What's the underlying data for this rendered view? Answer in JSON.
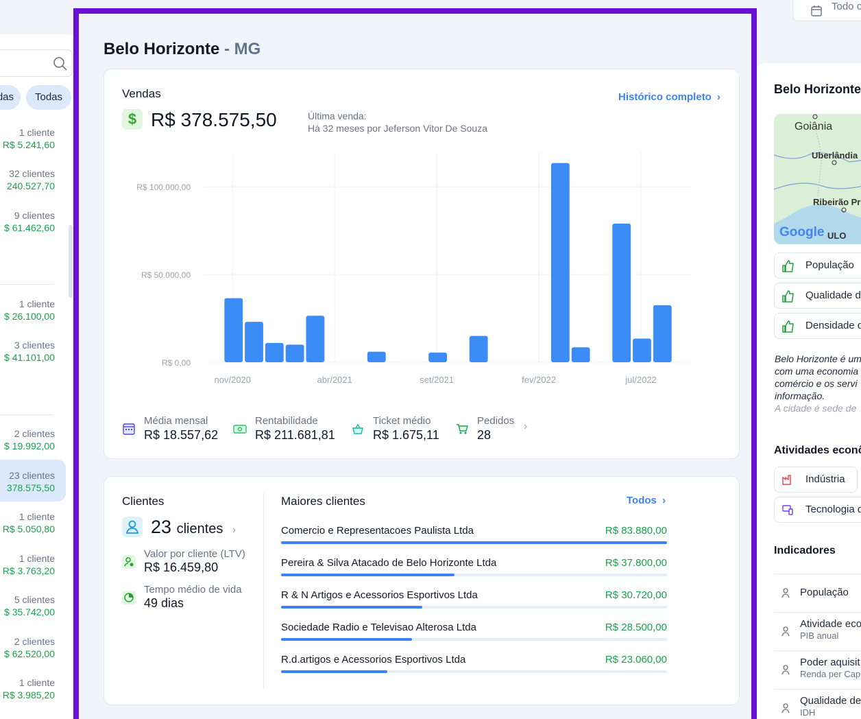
{
  "left_list": {
    "pills": [
      "das",
      "Todas"
    ],
    "items": [
      {
        "count": "1 cliente",
        "value": "R$ 5.241,60"
      },
      {
        "count": "32 clientes",
        "value": "240.527,70"
      },
      {
        "count": "9 clientes",
        "value": "$ 61.462,60"
      },
      {
        "count": "1 cliente",
        "value": "$ 26.100,00"
      },
      {
        "count": "3 clientes",
        "value": "$ 41.101,00"
      },
      {
        "count": "2 clientes",
        "value": "$ 19.992,00"
      },
      {
        "count": "23 clientes",
        "value": "378.575,50"
      },
      {
        "count": "1 cliente",
        "value": "R$ 5.050,80"
      },
      {
        "count": "1 cliente",
        "value": "R$ 3.763,20"
      },
      {
        "count": "5 clientes",
        "value": "$ 35.742,00"
      },
      {
        "count": "2 clientes",
        "value": "$ 62.520,00"
      },
      {
        "count": "1 cliente",
        "value": "R$ 3.985,20"
      }
    ]
  },
  "top_right_button": "Todo o",
  "city": {
    "name": "Belo Horizonte",
    "sep": " - ",
    "state": "MG"
  },
  "sales": {
    "title": "Vendas",
    "history_link": "Histórico completo",
    "currency_icon": "$",
    "total": "R$ 378.575,50",
    "last_sale_label": "Última venda:",
    "last_sale_text": "Há 32 meses por Jeferson Vitor De Souza"
  },
  "chart_data": {
    "type": "bar",
    "title": "",
    "xlabel": "",
    "ylabel": "",
    "ylim": [
      0,
      120000
    ],
    "y_ticks": [
      "R$ 0,00",
      "R$ 50.000,00",
      "R$ 100.000,00"
    ],
    "y_tick_values": [
      0,
      50000,
      100000
    ],
    "x_ticks": [
      "nov/2020",
      "abr/2021",
      "set/2021",
      "fev/2022",
      "jul/2022"
    ],
    "x_tick_index": [
      0,
      5,
      10,
      15,
      20
    ],
    "categories_count": 22,
    "values": [
      36500,
      23000,
      11000,
      10000,
      26500,
      0,
      0,
      6000,
      0,
      0,
      5500,
      0,
      15000,
      0,
      0,
      0,
      113500,
      8500,
      0,
      79000,
      13500,
      32500
    ],
    "bar_color": "#3b8cf6",
    "grid": true
  },
  "sales_stats": [
    {
      "label": "Média mensal",
      "value": "R$ 18.557,62",
      "icon": "calendar-icon"
    },
    {
      "label": "Rentabilidade",
      "value": "R$ 211.681,81",
      "icon": "money-icon"
    },
    {
      "label": "Ticket médio",
      "value": "R$ 1.675,11",
      "icon": "basket-icon"
    },
    {
      "label": "Pedidos",
      "value": "28",
      "icon": "cart-icon"
    }
  ],
  "clients": {
    "title": "Clientes",
    "count": "23",
    "count_suffix": "clientes",
    "ltv_label": "Valor por cliente (LTV)",
    "ltv_value": "R$ 16.459,80",
    "life_label": "Tempo médio de vida",
    "life_value": "49 dias"
  },
  "top_clients": {
    "title": "Maiores clientes",
    "all_link": "Todos",
    "rows": [
      {
        "name": "Comercio e Representacoes Paulista Ltda",
        "amount": "R$ 83.880,00",
        "share": 1.0
      },
      {
        "name": "Pereira & Silva Atacado de Belo Horizonte Ltda",
        "amount": "R$ 37.800,00",
        "share": 0.45
      },
      {
        "name": "R & N Artigos e Acessorios Esportivos Ltda",
        "amount": "R$ 30.720,00",
        "share": 0.366
      },
      {
        "name": "Sociedade Radio e Televisao Alterosa Ltda",
        "amount": "R$ 28.500,00",
        "share": 0.34
      },
      {
        "name": "R.d.artigos e Acessorios Esportivos Ltda",
        "amount": "R$ 23.060,00",
        "share": 0.275
      }
    ]
  },
  "right_panel": {
    "title": "Belo Horizonte",
    "map_labels": [
      "Goiânia",
      "Uberlândia",
      "Ribeirão Pr",
      "ULO"
    ],
    "map_logo": "Google",
    "rating_tags": [
      "População",
      "Qualidade de",
      "Densidade d"
    ],
    "description": [
      "Belo Horizonte é um",
      "com uma economia",
      "comércio e os servi",
      "informação.",
      "A cidade é sede de"
    ],
    "activities_title": "Atividades econô",
    "activities": [
      "Indústria",
      "Tecnologia d"
    ],
    "indicators_title": "Indicadores",
    "indicators": [
      {
        "title": "População",
        "sub": ""
      },
      {
        "title": "Atividade eco",
        "sub": "PIB anual"
      },
      {
        "title": "Poder aquisit",
        "sub": "Renda per Cap"
      },
      {
        "title": "Qualidade de",
        "sub": "IDH"
      }
    ]
  }
}
